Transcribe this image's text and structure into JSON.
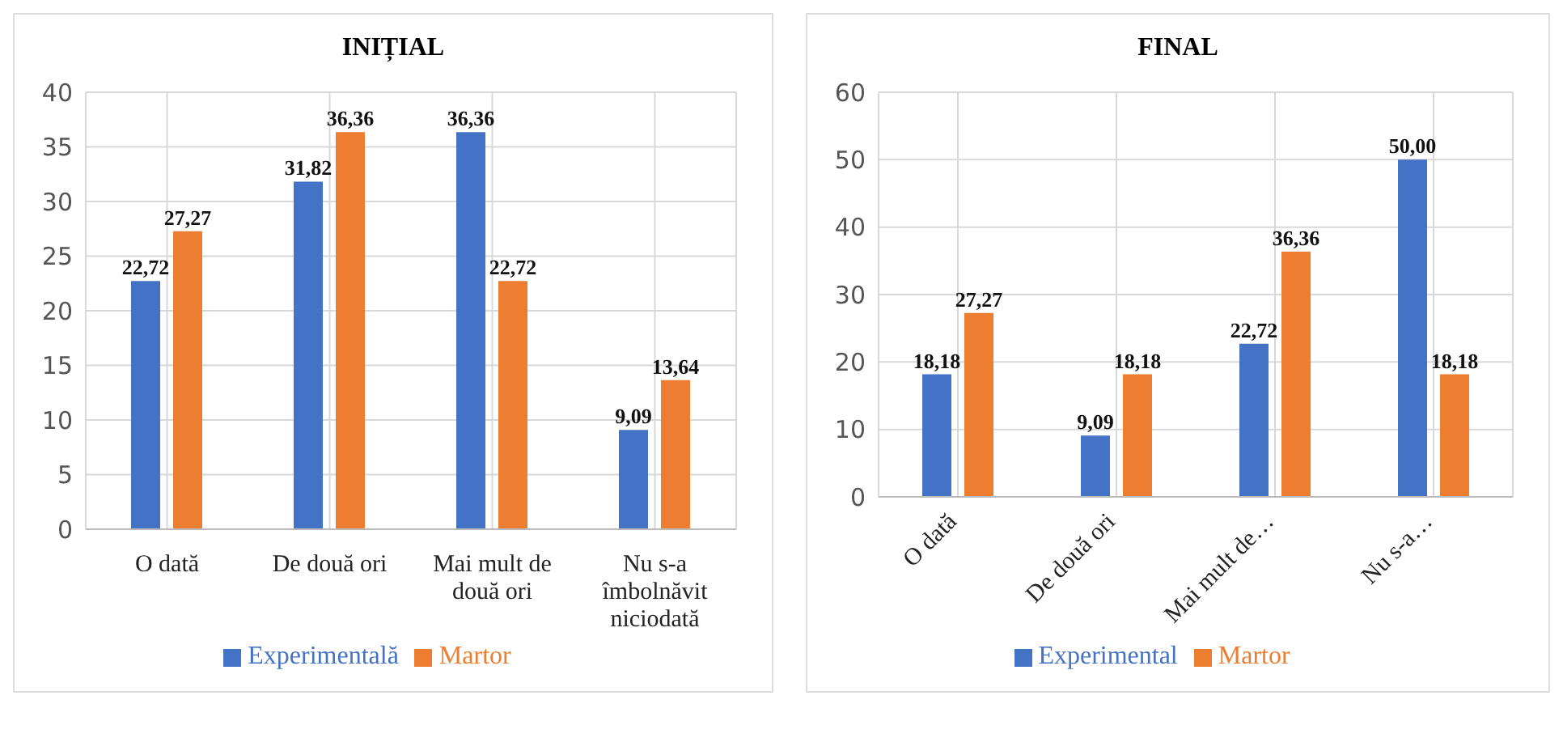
{
  "chart_data": [
    {
      "type": "bar",
      "title": "INIȚIAL",
      "categories": [
        "O dată",
        "De două ori",
        "Mai mult de două ori",
        "Nu s-a îmbolnăvit niciodată"
      ],
      "series": [
        {
          "name": "Experimentală",
          "color": "#4472c4",
          "values": [
            22.72,
            31.82,
            36.36,
            9.09
          ],
          "value_labels": [
            "22,72",
            "31,82",
            "36,36",
            "9,09"
          ]
        },
        {
          "name": "Martor",
          "color": "#ed7d31",
          "values": [
            27.27,
            36.36,
            22.72,
            13.64
          ],
          "value_labels": [
            "27,27",
            "36,36",
            "22,72",
            "13,64"
          ]
        }
      ],
      "ylim": [
        0,
        40
      ],
      "yticks": [
        0,
        5,
        10,
        15,
        20,
        25,
        30,
        35,
        40
      ],
      "grid": true,
      "legend": "bottom"
    },
    {
      "type": "bar",
      "title": "FINAL",
      "categories": [
        "O dată",
        "De două ori",
        "Mai mult de…",
        "Nu s-a…"
      ],
      "series": [
        {
          "name": "Experimental",
          "color": "#4472c4",
          "values": [
            18.18,
            9.09,
            22.72,
            50.0
          ],
          "value_labels": [
            "18,18",
            "9,09",
            "22,72",
            "50,00"
          ]
        },
        {
          "name": "Martor",
          "color": "#ed7d31",
          "values": [
            27.27,
            18.18,
            36.36,
            18.18
          ],
          "value_labels": [
            "27,27",
            "18,18",
            "36,36",
            "18,18"
          ]
        }
      ],
      "ylim": [
        0,
        60
      ],
      "yticks": [
        0,
        10,
        20,
        30,
        40,
        50,
        60
      ],
      "grid": true,
      "legend": "bottom"
    }
  ]
}
